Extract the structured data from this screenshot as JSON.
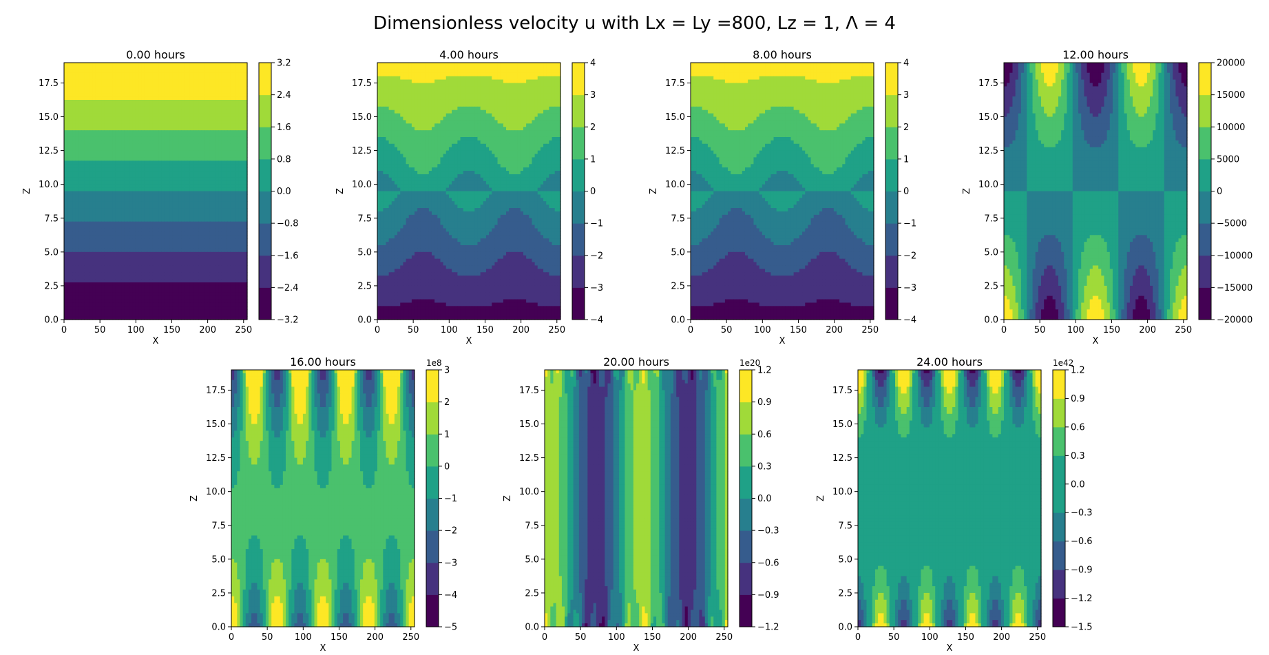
{
  "figure": {
    "suptitle": "Dimensionless velocity u with Lx = Ly =800, Lz = 1, Λ = 4"
  },
  "colormap": [
    "#440154",
    "#46327e",
    "#365c8d",
    "#277f8e",
    "#1fa187",
    "#4ac16d",
    "#a0da39",
    "#fde725"
  ],
  "chart_data": [
    {
      "type": "contour",
      "title": "0.00 hours",
      "xlabel": "X",
      "ylabel": "Z",
      "xlim": [
        0,
        255
      ],
      "ylim": [
        0,
        19
      ],
      "xticks": [
        "0",
        "50",
        "100",
        "150",
        "200",
        "250"
      ],
      "yticks": [
        "0.0",
        "2.5",
        "5.0",
        "7.5",
        "10.0",
        "12.5",
        "15.0",
        "17.5"
      ],
      "colorbar": {
        "levels": [
          "−3.2",
          "−2.4",
          "−1.6",
          "−0.8",
          "0.0",
          "0.8",
          "1.6",
          "2.4",
          "3.2"
        ],
        "offset": ""
      },
      "field": {
        "kind": "linear",
        "amp": 3.38,
        "vmin": -3.2,
        "vmax": 3.2
      }
    },
    {
      "type": "contour",
      "title": "4.00 hours",
      "xlabel": "X",
      "ylabel": "Z",
      "xlim": [
        0,
        255
      ],
      "ylim": [
        0,
        19
      ],
      "xticks": [
        "0",
        "50",
        "100",
        "150",
        "200",
        "250"
      ],
      "yticks": [
        "0.0",
        "2.5",
        "5.0",
        "7.5",
        "10.0",
        "12.5",
        "15.0",
        "17.5"
      ],
      "colorbar": {
        "levels": [
          "−4",
          "−3",
          "−2",
          "−1",
          "0",
          "1",
          "2",
          "3",
          "4"
        ],
        "offset": ""
      },
      "field": {
        "kind": "wavy",
        "amp": 3.4,
        "wave": 0.55,
        "k": 2,
        "vmin": -4,
        "vmax": 4
      }
    },
    {
      "type": "contour",
      "title": "8.00 hours",
      "xlabel": "X",
      "ylabel": "Z",
      "xlim": [
        0,
        255
      ],
      "ylim": [
        0,
        19
      ],
      "xticks": [
        "0",
        "50",
        "100",
        "150",
        "200",
        "250"
      ],
      "yticks": [
        "0.0",
        "2.5",
        "5.0",
        "7.5",
        "10.0",
        "12.5",
        "15.0",
        "17.5"
      ],
      "colorbar": {
        "levels": [
          "−4",
          "−3",
          "−2",
          "−1",
          "0",
          "1",
          "2",
          "3",
          "4"
        ],
        "offset": ""
      },
      "field": {
        "kind": "wavy",
        "amp": 3.4,
        "wave": 0.55,
        "k": 2,
        "vmin": -4,
        "vmax": 4
      }
    },
    {
      "type": "contour",
      "title": "12.00 hours",
      "xlabel": "X",
      "ylabel": "Z",
      "xlim": [
        0,
        255
      ],
      "ylim": [
        0,
        19
      ],
      "xticks": [
        "0",
        "50",
        "100",
        "150",
        "200",
        "250"
      ],
      "yticks": [
        "0.0",
        "2.5",
        "5.0",
        "7.5",
        "10.0",
        "12.5",
        "15.0",
        "17.5"
      ],
      "colorbar": {
        "levels": [
          "−20000",
          "−15000",
          "−10000",
          "−5000",
          "0",
          "5000",
          "10000",
          "15000",
          "20000"
        ],
        "offset": ""
      },
      "field": {
        "kind": "cells",
        "amp": 19000,
        "k": 4,
        "vmin": -20000,
        "vmax": 20000
      }
    },
    {
      "type": "contour",
      "title": "16.00 hours",
      "xlabel": "X",
      "ylabel": "Z",
      "xlim": [
        0,
        255
      ],
      "ylim": [
        0,
        19
      ],
      "xticks": [
        "0",
        "50",
        "100",
        "150",
        "200",
        "250"
      ],
      "yticks": [
        "0.0",
        "2.5",
        "5.0",
        "7.5",
        "10.0",
        "12.5",
        "15.0",
        "17.5"
      ],
      "colorbar": {
        "levels": [
          "−5",
          "−4",
          "−3",
          "−2",
          "−1",
          "0",
          "1",
          "2",
          "3"
        ],
        "offset": "1e8"
      },
      "field": {
        "kind": "growth",
        "k": 8,
        "vmin": -5,
        "vmax": 3,
        "top": -3.8,
        "bottom": 2.9,
        "base": 0.3
      }
    },
    {
      "type": "contour",
      "title": "20.00 hours",
      "xlabel": "X",
      "ylabel": "Z",
      "xlim": [
        0,
        255
      ],
      "ylim": [
        0,
        19
      ],
      "xticks": [
        "0",
        "50",
        "100",
        "150",
        "200",
        "250"
      ],
      "yticks": [
        "0.0",
        "2.5",
        "5.0",
        "7.5",
        "10.0",
        "12.5",
        "15.0",
        "17.5"
      ],
      "colorbar": {
        "levels": [
          "−1.2",
          "−0.9",
          "−0.6",
          "−0.3",
          "0.0",
          "0.3",
          "0.6",
          "0.9",
          "1.2"
        ],
        "offset": "1e20"
      },
      "field": {
        "kind": "columns",
        "k": 4,
        "vmin": -1.2,
        "vmax": 1.2,
        "amp": 0.75,
        "detail": 0.35
      }
    },
    {
      "type": "contour",
      "title": "24.00 hours",
      "xlabel": "X",
      "ylabel": "Z",
      "xlim": [
        0,
        255
      ],
      "ylim": [
        0,
        19
      ],
      "xticks": [
        "0",
        "50",
        "100",
        "150",
        "200",
        "250"
      ],
      "yticks": [
        "0.0",
        "2.5",
        "5.0",
        "7.5",
        "10.0",
        "12.5",
        "15.0",
        "17.5"
      ],
      "colorbar": {
        "levels": [
          "−1.5",
          "−1.2",
          "−0.9",
          "−0.6",
          "−0.3",
          "0.0",
          "0.3",
          "0.6",
          "0.9",
          "1.2"
        ],
        "offset": "1e42"
      },
      "field": {
        "kind": "edges",
        "k": 8,
        "vmin": -1.5,
        "vmax": 1.2,
        "amp": 0.75,
        "base": 0.05
      }
    }
  ]
}
